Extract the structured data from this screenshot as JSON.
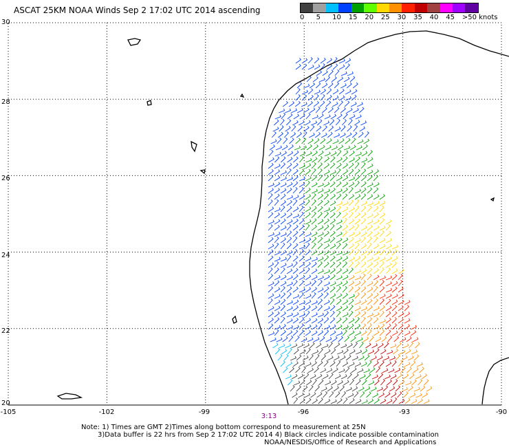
{
  "header": {
    "title": "ASCAT 25KM NOAA Winds Sep  2 17:02 UTC 2014 ascending"
  },
  "colorbar": {
    "colors": [
      "#404040",
      "#a0a0a0",
      "#00c0ff",
      "#0040ff",
      "#00a000",
      "#60ff00",
      "#ffd800",
      "#ff9000",
      "#ff2000",
      "#c00000",
      "#a04040",
      "#ff00ff",
      "#a000ff",
      "#6000a0"
    ],
    "labels": [
      "0",
      "5",
      "10",
      "15",
      "20",
      "25",
      "30",
      "35",
      "40",
      "45",
      ">50 knots"
    ]
  },
  "axes": {
    "y_labels": [
      "30",
      "28",
      "26",
      "24",
      "22",
      "20"
    ],
    "x_labels": [
      "-105",
      "-102",
      "-99",
      "-96",
      "-93",
      "-90"
    ],
    "time_label": "3:13"
  },
  "notes": {
    "line1": "Note: 1) Times are GMT 2)Times along bottom correspond to measurement at 25N",
    "line2": "3)Data buffer is 22 hrs from Sep  2 17:02 UTC 2014 4) Black circles indicate possible contamination",
    "line3": "NOAA/NESDIS/Office of Research and Applications"
  },
  "map": {
    "lon_range": [
      -105,
      -90
    ],
    "lat_range": [
      20,
      30
    ],
    "grid": true,
    "swath": {
      "north_edge": [
        [
          -95.2,
          29.2
        ],
        [
          -94.0,
          28.5
        ]
      ],
      "south_edge": [
        [
          -97.6,
          20.0
        ],
        [
          -91.6,
          20.0
        ]
      ]
    },
    "wind_zones": [
      {
        "region": "coastal north",
        "color": "#0040ff"
      },
      {
        "region": "central band",
        "color": "#00a000"
      },
      {
        "region": "east central",
        "color": "#ffd800"
      },
      {
        "region": "east south",
        "color": "#ff2000"
      },
      {
        "region": "southwest",
        "color": "#00c0ff"
      },
      {
        "region": "south central",
        "color": "#404040"
      },
      {
        "region": "southeast",
        "color": "#ff9000"
      }
    ]
  }
}
